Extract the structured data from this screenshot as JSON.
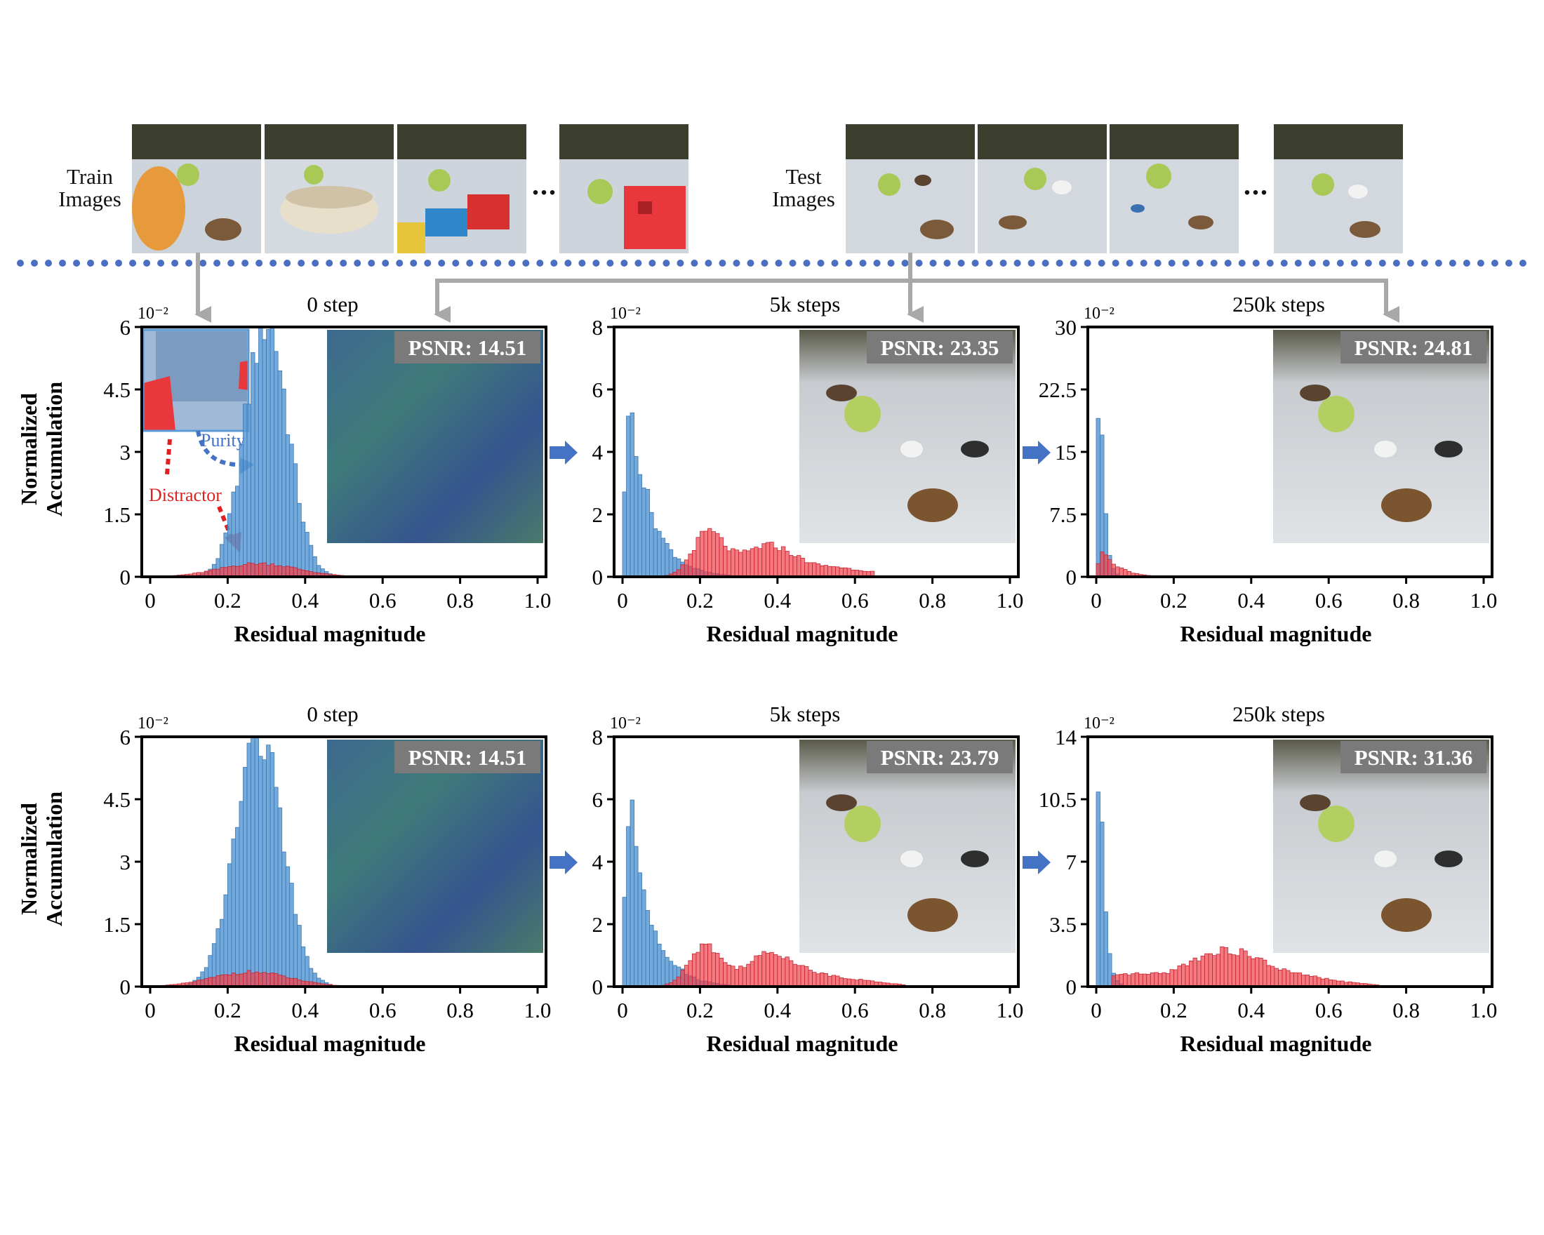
{
  "header": {
    "train_label": "Train\nImages",
    "test_label": "Test\nImages",
    "ellipsis": "..."
  },
  "colors": {
    "clean": "#5b9bd5",
    "distractor": "#f0414b",
    "arrow_gray": "#a8a8a8",
    "stage_arrow": "#4472c4",
    "separator": "#4a6fc2"
  },
  "annotations": {
    "purity": "Purity",
    "distractor": "Distractor"
  },
  "chart_data": [
    {
      "type": "histogram",
      "row": 1,
      "title": "0 step",
      "xlabel": "Residual magnitude",
      "ylabel": "Normalized\nAccumulation",
      "scale_label": "10⁻²",
      "psnr_label": "PSNR: 14.51",
      "xlim": [
        0,
        1.0
      ],
      "ylim": [
        0,
        6
      ],
      "xticks": [
        "0",
        "0.2",
        "0.4",
        "0.6",
        "0.8",
        "1.0"
      ],
      "yticks": [
        "0",
        "1.5",
        "3",
        "4.5",
        "6"
      ],
      "series": [
        {
          "name": "Purity",
          "dist": "gauss",
          "mu": 0.3,
          "sigma": 0.055,
          "peak": 6.2,
          "from": 0.0,
          "to": 0.65
        },
        {
          "name": "Distractor",
          "dist": "gauss",
          "mu": 0.28,
          "sigma": 0.1,
          "peak": 0.32,
          "from": 0.0,
          "to": 0.62
        }
      ]
    },
    {
      "type": "histogram",
      "row": 1,
      "title": "5k steps",
      "xlabel": "Residual magnitude",
      "scale_label": "10⁻²",
      "psnr_label": "PSNR: 23.35",
      "xlim": [
        0,
        1.0
      ],
      "ylim": [
        0,
        8
      ],
      "xticks": [
        "0",
        "0.2",
        "0.4",
        "0.6",
        "0.8",
        "1.0"
      ],
      "yticks": [
        "0",
        "2",
        "4",
        "6",
        "8"
      ],
      "series": [
        {
          "name": "Purity",
          "dist": "decay",
          "peak": 5.7,
          "mode": 0.02,
          "tau": 0.055,
          "from": 0.0,
          "to": 0.28
        },
        {
          "name": "Distractor",
          "dist": "bimodal",
          "a1": 1.35,
          "m1": 0.22,
          "s1": 0.04,
          "a2": 0.95,
          "m2": 0.37,
          "s2": 0.07,
          "tail": 0.3,
          "from": 0.02,
          "to": 0.65
        }
      ]
    },
    {
      "type": "histogram",
      "row": 1,
      "title": "250k steps",
      "xlabel": "Residual magnitude",
      "scale_label": "10⁻²",
      "psnr_label": "PSNR: 24.81",
      "xlim": [
        0,
        1.0
      ],
      "ylim": [
        0,
        30
      ],
      "xticks": [
        "0",
        "0.2",
        "0.4",
        "0.6",
        "0.8",
        "1.0"
      ],
      "yticks": [
        "0",
        "7.5",
        "15",
        "22.5",
        "30"
      ],
      "series": [
        {
          "name": "Purity",
          "dist": "decay",
          "peak": 31,
          "mode": 0.01,
          "tau": 0.01,
          "from": 0.0,
          "to": 0.08
        },
        {
          "name": "Distractor",
          "dist": "decay",
          "peak": 3.2,
          "mode": 0.02,
          "tau": 0.04,
          "from": 0.0,
          "to": 0.18
        }
      ]
    },
    {
      "type": "histogram",
      "row": 2,
      "title": "0 step",
      "xlabel": "Residual magnitude",
      "ylabel": "Normalized\nAccumulation",
      "scale_label": "10⁻²",
      "psnr_label": "PSNR: 14.51",
      "xlim": [
        0,
        1.0
      ],
      "ylim": [
        0,
        6
      ],
      "xticks": [
        "0",
        "0.2",
        "0.4",
        "0.6",
        "0.8",
        "1.0"
      ],
      "yticks": [
        "0",
        "1.5",
        "3",
        "4.5",
        "6"
      ],
      "series": [
        {
          "name": "Purity",
          "dist": "gauss",
          "mu": 0.28,
          "sigma": 0.06,
          "peak": 6.1,
          "from": 0.0,
          "to": 0.65
        },
        {
          "name": "Distractor",
          "dist": "gauss",
          "mu": 0.26,
          "sigma": 0.1,
          "peak": 0.35,
          "from": 0.0,
          "to": 0.6
        }
      ]
    },
    {
      "type": "histogram",
      "row": 2,
      "title": "5k steps",
      "xlabel": "Residual magnitude",
      "scale_label": "10⁻²",
      "psnr_label": "PSNR: 23.79",
      "xlim": [
        0,
        1.0
      ],
      "ylim": [
        0,
        8
      ],
      "xticks": [
        "0",
        "0.2",
        "0.4",
        "0.6",
        "0.8",
        "1.0"
      ],
      "yticks": [
        "0",
        "2",
        "4",
        "6",
        "8"
      ],
      "series": [
        {
          "name": "Purity",
          "dist": "decay",
          "peak": 5.9,
          "mode": 0.02,
          "tau": 0.055,
          "from": 0.0,
          "to": 0.28
        },
        {
          "name": "Distractor",
          "dist": "bimodal",
          "a1": 1.3,
          "m1": 0.21,
          "s1": 0.04,
          "a2": 1.0,
          "m2": 0.38,
          "s2": 0.07,
          "tail": 0.3,
          "from": 0.02,
          "to": 0.73
        }
      ]
    },
    {
      "type": "histogram",
      "row": 2,
      "title": "250k steps",
      "xlabel": "Residual magnitude",
      "scale_label": "10⁻²",
      "psnr_label": "PSNR: 31.36",
      "xlim": [
        0,
        1.0
      ],
      "ylim": [
        0,
        14
      ],
      "xticks": [
        "0",
        "0.2",
        "0.4",
        "0.6",
        "0.8",
        "1.0"
      ],
      "yticks": [
        "0",
        "3.5",
        "7",
        "10.5",
        "14"
      ],
      "series": [
        {
          "name": "Purity",
          "dist": "decay",
          "peak": 14.5,
          "mode": 0.01,
          "tau": 0.012,
          "from": 0.0,
          "to": 0.08
        },
        {
          "name": "Distractor",
          "dist": "bimodal",
          "a1": 0.6,
          "m1": 0.08,
          "s1": 0.06,
          "a2": 2.0,
          "m2": 0.33,
          "s2": 0.1,
          "tail": 0.45,
          "from": 0.04,
          "to": 0.73
        }
      ]
    }
  ]
}
